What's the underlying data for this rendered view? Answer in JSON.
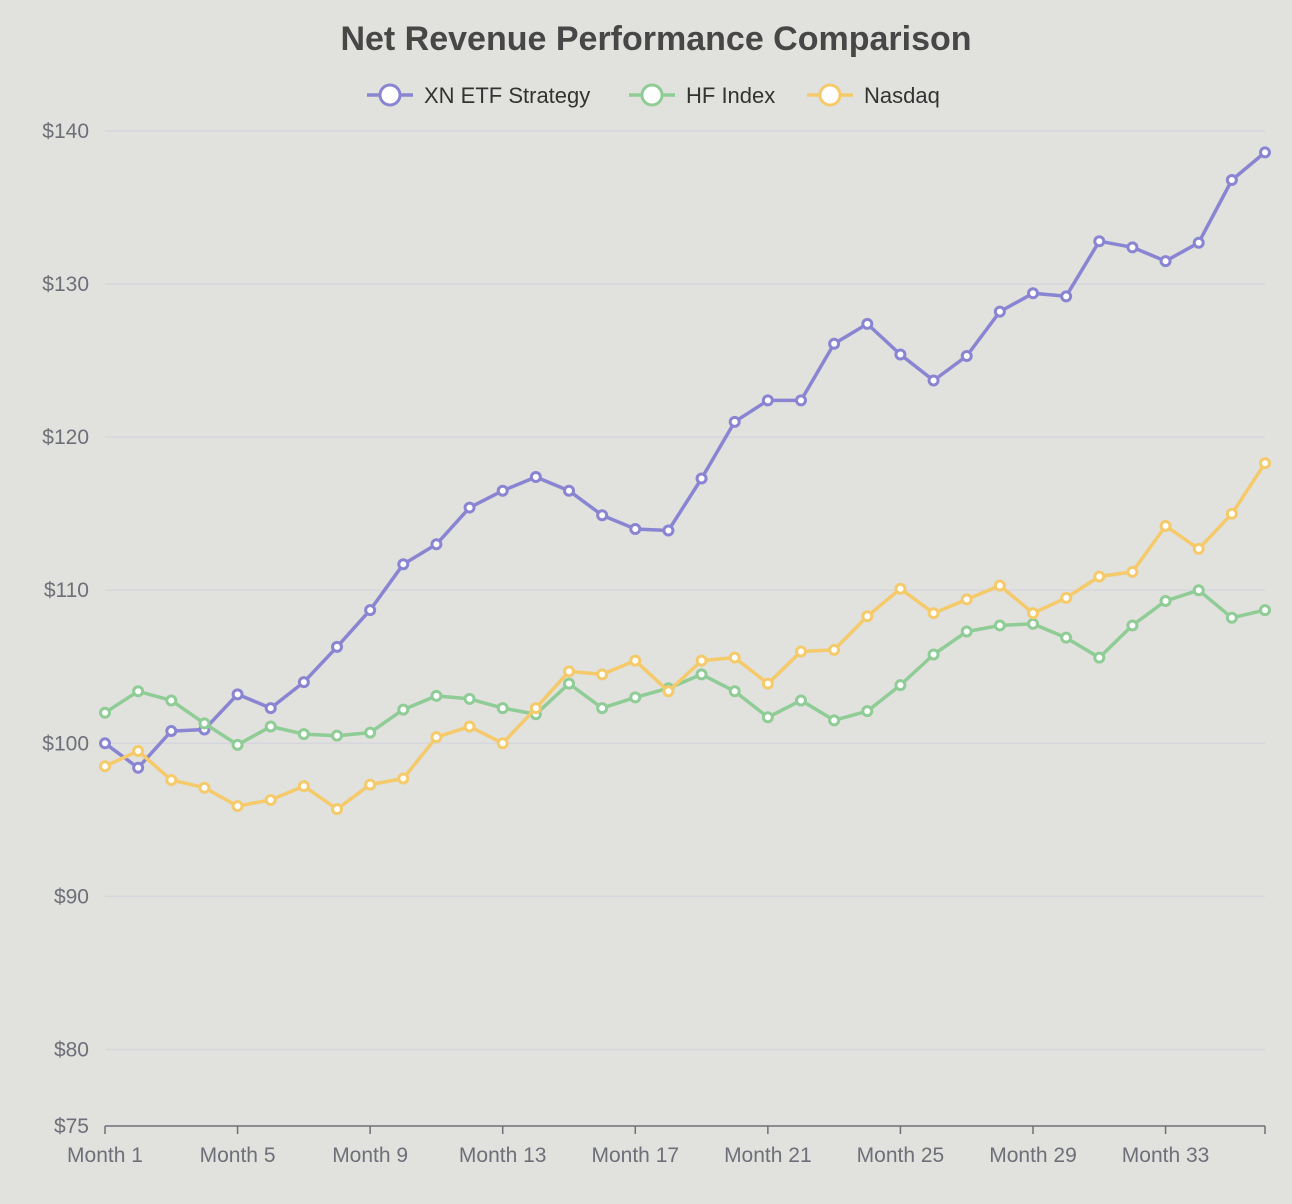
{
  "chart_data": {
    "type": "line",
    "title": "Net Revenue Performance Comparison",
    "xlabel": "",
    "ylabel": "",
    "ylim": [
      75,
      140
    ],
    "y_ticks": [
      75,
      80,
      90,
      100,
      110,
      120,
      130,
      140
    ],
    "y_tick_labels": [
      "$75",
      "$80",
      "$90",
      "$100",
      "$110",
      "$120",
      "$130",
      "$140"
    ],
    "x_tick_labels": [
      "Month 1",
      "Month 5",
      "Month 9",
      "Month 13",
      "Month 17",
      "Month 21",
      "Month 25",
      "Month 29",
      "Month 33"
    ],
    "x_tick_indices": [
      0,
      4,
      8,
      12,
      16,
      20,
      24,
      28,
      32
    ],
    "categories": [
      "Month 1",
      "Month 2",
      "Month 3",
      "Month 4",
      "Month 5",
      "Month 6",
      "Month 7",
      "Month 8",
      "Month 9",
      "Month 10",
      "Month 11",
      "Month 12",
      "Month 13",
      "Month 14",
      "Month 15",
      "Month 16",
      "Month 17",
      "Month 18",
      "Month 19",
      "Month 20",
      "Month 21",
      "Month 22",
      "Month 23",
      "Month 24",
      "Month 25",
      "Month 26",
      "Month 27",
      "Month 28",
      "Month 29",
      "Month 30",
      "Month 31",
      "Month 32",
      "Month 33",
      "Month 34",
      "Month 35",
      "Month 36"
    ],
    "grid": true,
    "legend_position": "top-center",
    "series": [
      {
        "name": "XN ETF Strategy",
        "color": "#8a85d2",
        "values": [
          100.0,
          98.4,
          100.8,
          100.9,
          103.2,
          102.3,
          104.0,
          106.3,
          108.7,
          111.7,
          113.0,
          115.4,
          116.5,
          117.4,
          116.5,
          114.9,
          114.0,
          113.9,
          117.3,
          121.0,
          122.4,
          122.4,
          126.1,
          127.4,
          125.4,
          123.7,
          125.3,
          128.2,
          129.4,
          129.2,
          132.8,
          132.4,
          131.5,
          132.7,
          136.8,
          138.6
        ]
      },
      {
        "name": "HF Index",
        "color": "#8fcc96",
        "values": [
          102.0,
          103.4,
          102.8,
          101.3,
          99.9,
          101.1,
          100.6,
          100.5,
          100.7,
          102.2,
          103.1,
          102.9,
          102.3,
          101.9,
          103.9,
          102.3,
          103.0,
          103.6,
          104.5,
          103.4,
          101.7,
          102.8,
          101.5,
          102.1,
          103.8,
          105.8,
          107.3,
          107.7,
          107.8,
          106.9,
          105.6,
          107.7,
          109.3,
          110.0,
          108.2,
          108.7
        ]
      },
      {
        "name": "Nasdaq",
        "color": "#f5ca6a",
        "values": [
          98.5,
          99.5,
          97.6,
          97.1,
          95.9,
          96.3,
          97.2,
          95.7,
          97.3,
          97.7,
          100.4,
          101.1,
          100.0,
          102.3,
          104.7,
          104.5,
          105.4,
          103.4,
          105.4,
          105.6,
          103.9,
          106.0,
          106.1,
          108.3,
          110.1,
          108.5,
          109.4,
          110.3,
          108.5,
          109.5,
          110.9,
          111.2,
          114.2,
          112.7,
          115.0,
          118.3
        ]
      }
    ]
  }
}
